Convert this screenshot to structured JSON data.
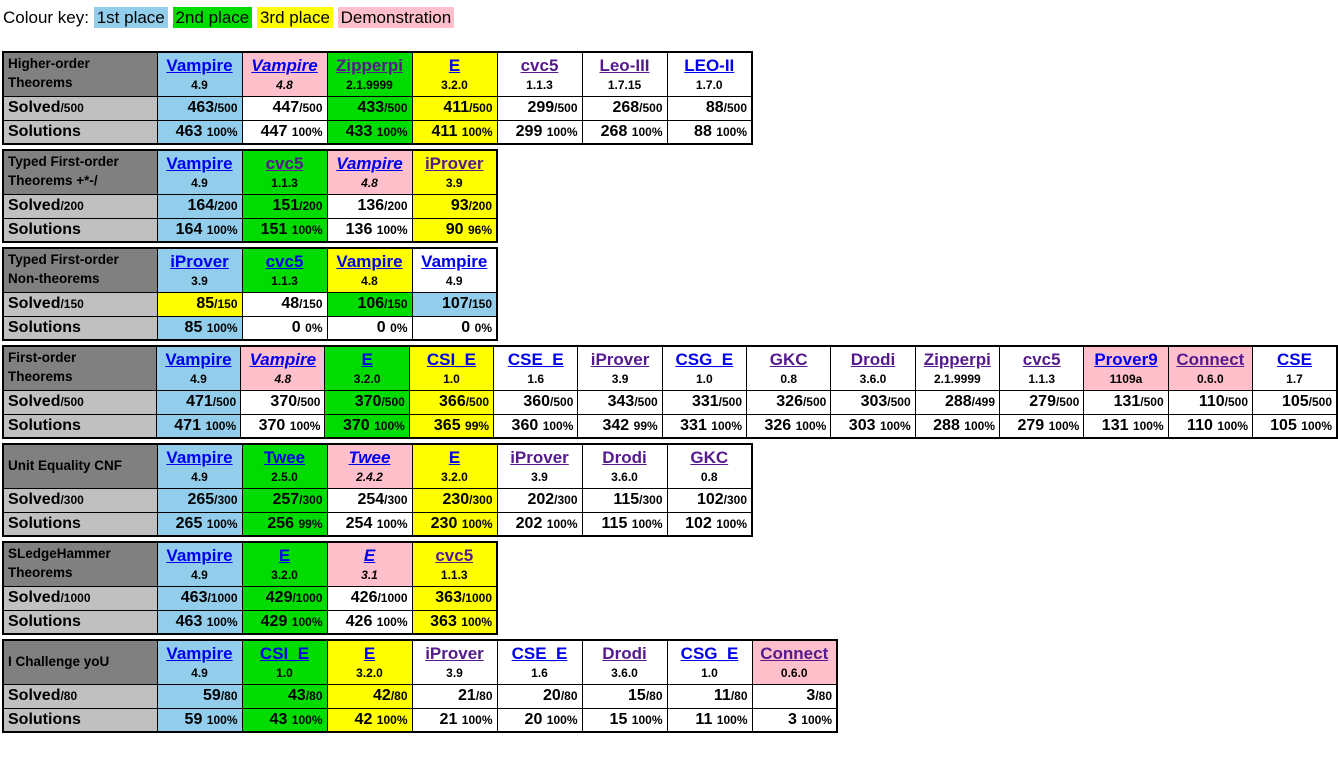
{
  "colors": {
    "first_place": "#92CEEB",
    "second_place": "#00DC00",
    "third_place": "#FFFF00",
    "demonstration": "#FFC0CB",
    "division_header_bg": "#808080",
    "row_label_bg": "#C0C0C0",
    "link_blue": "#0000EE",
    "link_purple": "#551A8B"
  },
  "colour_key": {
    "label": "Colour key:",
    "items": [
      {
        "label": "1st place",
        "color": "#92CEEB"
      },
      {
        "label": "2nd place",
        "color": "#00DC00"
      },
      {
        "label": "3rd place",
        "color": "#FFFF00"
      },
      {
        "label": "Demonstration",
        "color": "#FFC0CB"
      }
    ]
  },
  "tables": [
    {
      "id": "higher-order-theorems",
      "division": [
        "Higher-order",
        "Theorems"
      ],
      "solved_label": "Solved",
      "solved_total": "/500",
      "solutions_label": "Solutions",
      "systems": [
        {
          "name": "Vampire",
          "version": "4.9",
          "link": "blue",
          "italic": false,
          "bg": "blue"
        },
        {
          "name": "Vampire",
          "version": "4.8",
          "link": "blue",
          "italic": true,
          "bg": "pink"
        },
        {
          "name": "Zipperpi",
          "version": "2.1.9999",
          "link": "purple",
          "italic": false,
          "bg": "green"
        },
        {
          "name": "E",
          "version": "3.2.0",
          "link": "blue",
          "italic": false,
          "bg": "yellow"
        },
        {
          "name": "cvc5",
          "version": "1.1.3",
          "link": "purple",
          "italic": false,
          "bg": "white"
        },
        {
          "name": "Leo-III",
          "version": "1.7.15",
          "link": "purple",
          "italic": false,
          "bg": "white"
        },
        {
          "name": "LEO-II",
          "version": "1.7.0",
          "link": "blue",
          "italic": false,
          "bg": "white"
        }
      ],
      "solved": [
        {
          "num": "463",
          "den": "/500",
          "bg": "blue"
        },
        {
          "num": "447",
          "den": "/500",
          "bg": "white"
        },
        {
          "num": "433",
          "den": "/500",
          "bg": "green"
        },
        {
          "num": "411",
          "den": "/500",
          "bg": "yellow"
        },
        {
          "num": "299",
          "den": "/500",
          "bg": "white"
        },
        {
          "num": "268",
          "den": "/500",
          "bg": "white"
        },
        {
          "num": "88",
          "den": "/500",
          "bg": "white"
        }
      ],
      "solutions": [
        {
          "num": "463",
          "pct": "100%",
          "bg": "blue"
        },
        {
          "num": "447",
          "pct": "100%",
          "bg": "white"
        },
        {
          "num": "433",
          "pct": "100%",
          "bg": "green"
        },
        {
          "num": "411",
          "pct": "100%",
          "bg": "yellow"
        },
        {
          "num": "299",
          "pct": "100%",
          "bg": "white"
        },
        {
          "num": "268",
          "pct": "100%",
          "bg": "white"
        },
        {
          "num": "88",
          "pct": "100%",
          "bg": "white"
        }
      ]
    },
    {
      "id": "typed-first-order-theorems",
      "division": [
        "Typed First-order",
        "Theorems +*-/"
      ],
      "solved_label": "Solved",
      "solved_total": "/200",
      "solutions_label": "Solutions",
      "systems": [
        {
          "name": "Vampire",
          "version": "4.9",
          "link": "blue",
          "italic": false,
          "bg": "blue"
        },
        {
          "name": "cvc5",
          "version": "1.1.3",
          "link": "purple",
          "italic": false,
          "bg": "green"
        },
        {
          "name": "Vampire",
          "version": "4.8",
          "link": "blue",
          "italic": true,
          "bg": "pink"
        },
        {
          "name": "iProver",
          "version": "3.9",
          "link": "purple",
          "italic": false,
          "bg": "yellow"
        }
      ],
      "solved": [
        {
          "num": "164",
          "den": "/200",
          "bg": "blue"
        },
        {
          "num": "151",
          "den": "/200",
          "bg": "green"
        },
        {
          "num": "136",
          "den": "/200",
          "bg": "white"
        },
        {
          "num": "93",
          "den": "/200",
          "bg": "yellow"
        }
      ],
      "solutions": [
        {
          "num": "164",
          "pct": "100%",
          "bg": "blue"
        },
        {
          "num": "151",
          "pct": "100%",
          "bg": "green"
        },
        {
          "num": "136",
          "pct": "100%",
          "bg": "white"
        },
        {
          "num": "90",
          "pct": "96%",
          "bg": "yellow"
        }
      ]
    },
    {
      "id": "typed-first-order-non-theorems",
      "division": [
        "Typed First-order",
        "Non-theorems"
      ],
      "solved_label": "Solved",
      "solved_total": "/150",
      "solutions_label": "Solutions",
      "systems": [
        {
          "name": "iProver",
          "version": "3.9",
          "link": "blue",
          "italic": false,
          "bg": "blue"
        },
        {
          "name": "cvc5",
          "version": "1.1.3",
          "link": "blue",
          "italic": false,
          "bg": "green"
        },
        {
          "name": "Vampire",
          "version": "4.8",
          "link": "blue",
          "italic": false,
          "bg": "yellow"
        },
        {
          "name": "Vampire",
          "version": "4.9",
          "link": "blue",
          "italic": false,
          "bg": "white"
        }
      ],
      "solved": [
        {
          "num": "85",
          "den": "/150",
          "bg": "yellow"
        },
        {
          "num": "48",
          "den": "/150",
          "bg": "white"
        },
        {
          "num": "106",
          "den": "/150",
          "bg": "green"
        },
        {
          "num": "107",
          "den": "/150",
          "bg": "blue"
        }
      ],
      "solutions": [
        {
          "num": "85",
          "pct": "100%",
          "bg": "blue"
        },
        {
          "num": "0",
          "pct": "0%",
          "bg": "white"
        },
        {
          "num": "0",
          "pct": "0%",
          "bg": "white"
        },
        {
          "num": "0",
          "pct": "0%",
          "bg": "white"
        }
      ]
    },
    {
      "id": "first-order-theorems",
      "division": [
        "First-order",
        "Theorems"
      ],
      "solved_label": "Solved",
      "solved_total": "/500",
      "solutions_label": "Solutions",
      "systems": [
        {
          "name": "Vampire",
          "version": "4.9",
          "link": "blue",
          "italic": false,
          "bg": "blue"
        },
        {
          "name": "Vampire",
          "version": "4.8",
          "link": "blue",
          "italic": true,
          "bg": "pink"
        },
        {
          "name": "E",
          "version": "3.2.0",
          "link": "blue",
          "italic": false,
          "bg": "green"
        },
        {
          "name": "CSI_E",
          "version": "1.0",
          "link": "blue",
          "italic": false,
          "bg": "yellow"
        },
        {
          "name": "CSE_E",
          "version": "1.6",
          "link": "blue",
          "italic": false,
          "bg": "white"
        },
        {
          "name": "iProver",
          "version": "3.9",
          "link": "purple",
          "italic": false,
          "bg": "white"
        },
        {
          "name": "CSG_E",
          "version": "1.0",
          "link": "blue",
          "italic": false,
          "bg": "white"
        },
        {
          "name": "GKC",
          "version": "0.8",
          "link": "purple",
          "italic": false,
          "bg": "white"
        },
        {
          "name": "Drodi",
          "version": "3.6.0",
          "link": "purple",
          "italic": false,
          "bg": "white"
        },
        {
          "name": "Zipperpi",
          "version": "2.1.9999",
          "link": "purple",
          "italic": false,
          "bg": "white"
        },
        {
          "name": "cvc5",
          "version": "1.1.3",
          "link": "purple",
          "italic": false,
          "bg": "white"
        },
        {
          "name": "Prover9",
          "version": "1109a",
          "link": "blue",
          "italic": false,
          "bg": "pink"
        },
        {
          "name": "Connect",
          "version": "0.6.0",
          "link": "purple",
          "italic": false,
          "bg": "pink"
        },
        {
          "name": "CSE",
          "version": "1.7",
          "link": "blue",
          "italic": false,
          "bg": "white"
        }
      ],
      "solved": [
        {
          "num": "471",
          "den": "/500",
          "bg": "blue"
        },
        {
          "num": "370",
          "den": "/500",
          "bg": "white"
        },
        {
          "num": "370",
          "den": "/500",
          "bg": "green"
        },
        {
          "num": "366",
          "den": "/500",
          "bg": "yellow"
        },
        {
          "num": "360",
          "den": "/500",
          "bg": "white"
        },
        {
          "num": "343",
          "den": "/500",
          "bg": "white"
        },
        {
          "num": "331",
          "den": "/500",
          "bg": "white"
        },
        {
          "num": "326",
          "den": "/500",
          "bg": "white"
        },
        {
          "num": "303",
          "den": "/500",
          "bg": "white"
        },
        {
          "num": "288",
          "den": "/499",
          "bg": "white"
        },
        {
          "num": "279",
          "den": "/500",
          "bg": "white"
        },
        {
          "num": "131",
          "den": "/500",
          "bg": "white"
        },
        {
          "num": "110",
          "den": "/500",
          "bg": "white"
        },
        {
          "num": "105",
          "den": "/500",
          "bg": "white"
        }
      ],
      "solutions": [
        {
          "num": "471",
          "pct": "100%",
          "bg": "blue"
        },
        {
          "num": "370",
          "pct": "100%",
          "bg": "white"
        },
        {
          "num": "370",
          "pct": "100%",
          "bg": "green"
        },
        {
          "num": "365",
          "pct": "99%",
          "bg": "yellow"
        },
        {
          "num": "360",
          "pct": "100%",
          "bg": "white"
        },
        {
          "num": "342",
          "pct": "99%",
          "bg": "white"
        },
        {
          "num": "331",
          "pct": "100%",
          "bg": "white"
        },
        {
          "num": "326",
          "pct": "100%",
          "bg": "white"
        },
        {
          "num": "303",
          "pct": "100%",
          "bg": "white"
        },
        {
          "num": "288",
          "pct": "100%",
          "bg": "white"
        },
        {
          "num": "279",
          "pct": "100%",
          "bg": "white"
        },
        {
          "num": "131",
          "pct": "100%",
          "bg": "white"
        },
        {
          "num": "110",
          "pct": "100%",
          "bg": "white"
        },
        {
          "num": "105",
          "pct": "100%",
          "bg": "white"
        }
      ]
    },
    {
      "id": "unit-equality-cnf",
      "division": [
        "Unit Equality CNF"
      ],
      "solved_label": "Solved",
      "solved_total": "/300",
      "solutions_label": "Solutions",
      "systems": [
        {
          "name": "Vampire",
          "version": "4.9",
          "link": "blue",
          "italic": false,
          "bg": "blue"
        },
        {
          "name": "Twee",
          "version": "2.5.0",
          "link": "blue",
          "italic": false,
          "bg": "green"
        },
        {
          "name": "Twee",
          "version": "2.4.2",
          "link": "blue",
          "italic": true,
          "bg": "pink"
        },
        {
          "name": "E",
          "version": "3.2.0",
          "link": "blue",
          "italic": false,
          "bg": "yellow"
        },
        {
          "name": "iProver",
          "version": "3.9",
          "link": "purple",
          "italic": false,
          "bg": "white"
        },
        {
          "name": "Drodi",
          "version": "3.6.0",
          "link": "purple",
          "italic": false,
          "bg": "white"
        },
        {
          "name": "GKC",
          "version": "0.8",
          "link": "purple",
          "italic": false,
          "bg": "white"
        }
      ],
      "solved": [
        {
          "num": "265",
          "den": "/300",
          "bg": "blue"
        },
        {
          "num": "257",
          "den": "/300",
          "bg": "green"
        },
        {
          "num": "254",
          "den": "/300",
          "bg": "white"
        },
        {
          "num": "230",
          "den": "/300",
          "bg": "yellow"
        },
        {
          "num": "202",
          "den": "/300",
          "bg": "white"
        },
        {
          "num": "115",
          "den": "/300",
          "bg": "white"
        },
        {
          "num": "102",
          "den": "/300",
          "bg": "white"
        }
      ],
      "solutions": [
        {
          "num": "265",
          "pct": "100%",
          "bg": "blue"
        },
        {
          "num": "256",
          "pct": "99%",
          "bg": "green"
        },
        {
          "num": "254",
          "pct": "100%",
          "bg": "white"
        },
        {
          "num": "230",
          "pct": "100%",
          "bg": "yellow"
        },
        {
          "num": "202",
          "pct": "100%",
          "bg": "white"
        },
        {
          "num": "115",
          "pct": "100%",
          "bg": "white"
        },
        {
          "num": "102",
          "pct": "100%",
          "bg": "white"
        }
      ]
    },
    {
      "id": "sledgehammer-theorems",
      "division": [
        "SLedgeHammer",
        "Theorems"
      ],
      "solved_label": "Solved",
      "solved_total": "/1000",
      "solutions_label": "Solutions",
      "systems": [
        {
          "name": "Vampire",
          "version": "4.9",
          "link": "blue",
          "italic": false,
          "bg": "blue"
        },
        {
          "name": "E",
          "version": "3.2.0",
          "link": "blue",
          "italic": false,
          "bg": "green"
        },
        {
          "name": "E",
          "version": "3.1",
          "link": "blue",
          "italic": true,
          "bg": "pink"
        },
        {
          "name": "cvc5",
          "version": "1.1.3",
          "link": "purple",
          "italic": false,
          "bg": "yellow"
        }
      ],
      "solved": [
        {
          "num": "463",
          "den": "/1000",
          "bg": "blue"
        },
        {
          "num": "429",
          "den": "/1000",
          "bg": "green"
        },
        {
          "num": "426",
          "den": "/1000",
          "bg": "white"
        },
        {
          "num": "363",
          "den": "/1000",
          "bg": "yellow"
        }
      ],
      "solutions": [
        {
          "num": "463",
          "pct": "100%",
          "bg": "blue"
        },
        {
          "num": "429",
          "pct": "100%",
          "bg": "green"
        },
        {
          "num": "426",
          "pct": "100%",
          "bg": "white"
        },
        {
          "num": "363",
          "pct": "100%",
          "bg": "yellow"
        }
      ]
    },
    {
      "id": "i-challenge-you",
      "division": [
        "I Challenge yoU"
      ],
      "solved_label": "Solved",
      "solved_total": "/80",
      "solutions_label": "Solutions",
      "systems": [
        {
          "name": "Vampire",
          "version": "4.9",
          "link": "blue",
          "italic": false,
          "bg": "blue"
        },
        {
          "name": "CSI_E",
          "version": "1.0",
          "link": "blue",
          "italic": false,
          "bg": "green"
        },
        {
          "name": "E",
          "version": "3.2.0",
          "link": "blue",
          "italic": false,
          "bg": "yellow"
        },
        {
          "name": "iProver",
          "version": "3.9",
          "link": "purple",
          "italic": false,
          "bg": "white"
        },
        {
          "name": "CSE_E",
          "version": "1.6",
          "link": "blue",
          "italic": false,
          "bg": "white"
        },
        {
          "name": "Drodi",
          "version": "3.6.0",
          "link": "purple",
          "italic": false,
          "bg": "white"
        },
        {
          "name": "CSG_E",
          "version": "1.0",
          "link": "blue",
          "italic": false,
          "bg": "white"
        },
        {
          "name": "Connect",
          "version": "0.6.0",
          "link": "purple",
          "italic": false,
          "bg": "pink"
        }
      ],
      "solved": [
        {
          "num": "59",
          "den": "/80",
          "bg": "blue"
        },
        {
          "num": "43",
          "den": "/80",
          "bg": "green"
        },
        {
          "num": "42",
          "den": "/80",
          "bg": "yellow"
        },
        {
          "num": "21",
          "den": "/80",
          "bg": "white"
        },
        {
          "num": "20",
          "den": "/80",
          "bg": "white"
        },
        {
          "num": "15",
          "den": "/80",
          "bg": "white"
        },
        {
          "num": "11",
          "den": "/80",
          "bg": "white"
        },
        {
          "num": "3",
          "den": "/80",
          "bg": "white"
        }
      ],
      "solutions": [
        {
          "num": "59",
          "pct": "100%",
          "bg": "blue"
        },
        {
          "num": "43",
          "pct": "100%",
          "bg": "green"
        },
        {
          "num": "42",
          "pct": "100%",
          "bg": "yellow"
        },
        {
          "num": "21",
          "pct": "100%",
          "bg": "white"
        },
        {
          "num": "20",
          "pct": "100%",
          "bg": "white"
        },
        {
          "num": "15",
          "pct": "100%",
          "bg": "white"
        },
        {
          "num": "11",
          "pct": "100%",
          "bg": "white"
        },
        {
          "num": "3",
          "pct": "100%",
          "bg": "white"
        }
      ]
    }
  ]
}
